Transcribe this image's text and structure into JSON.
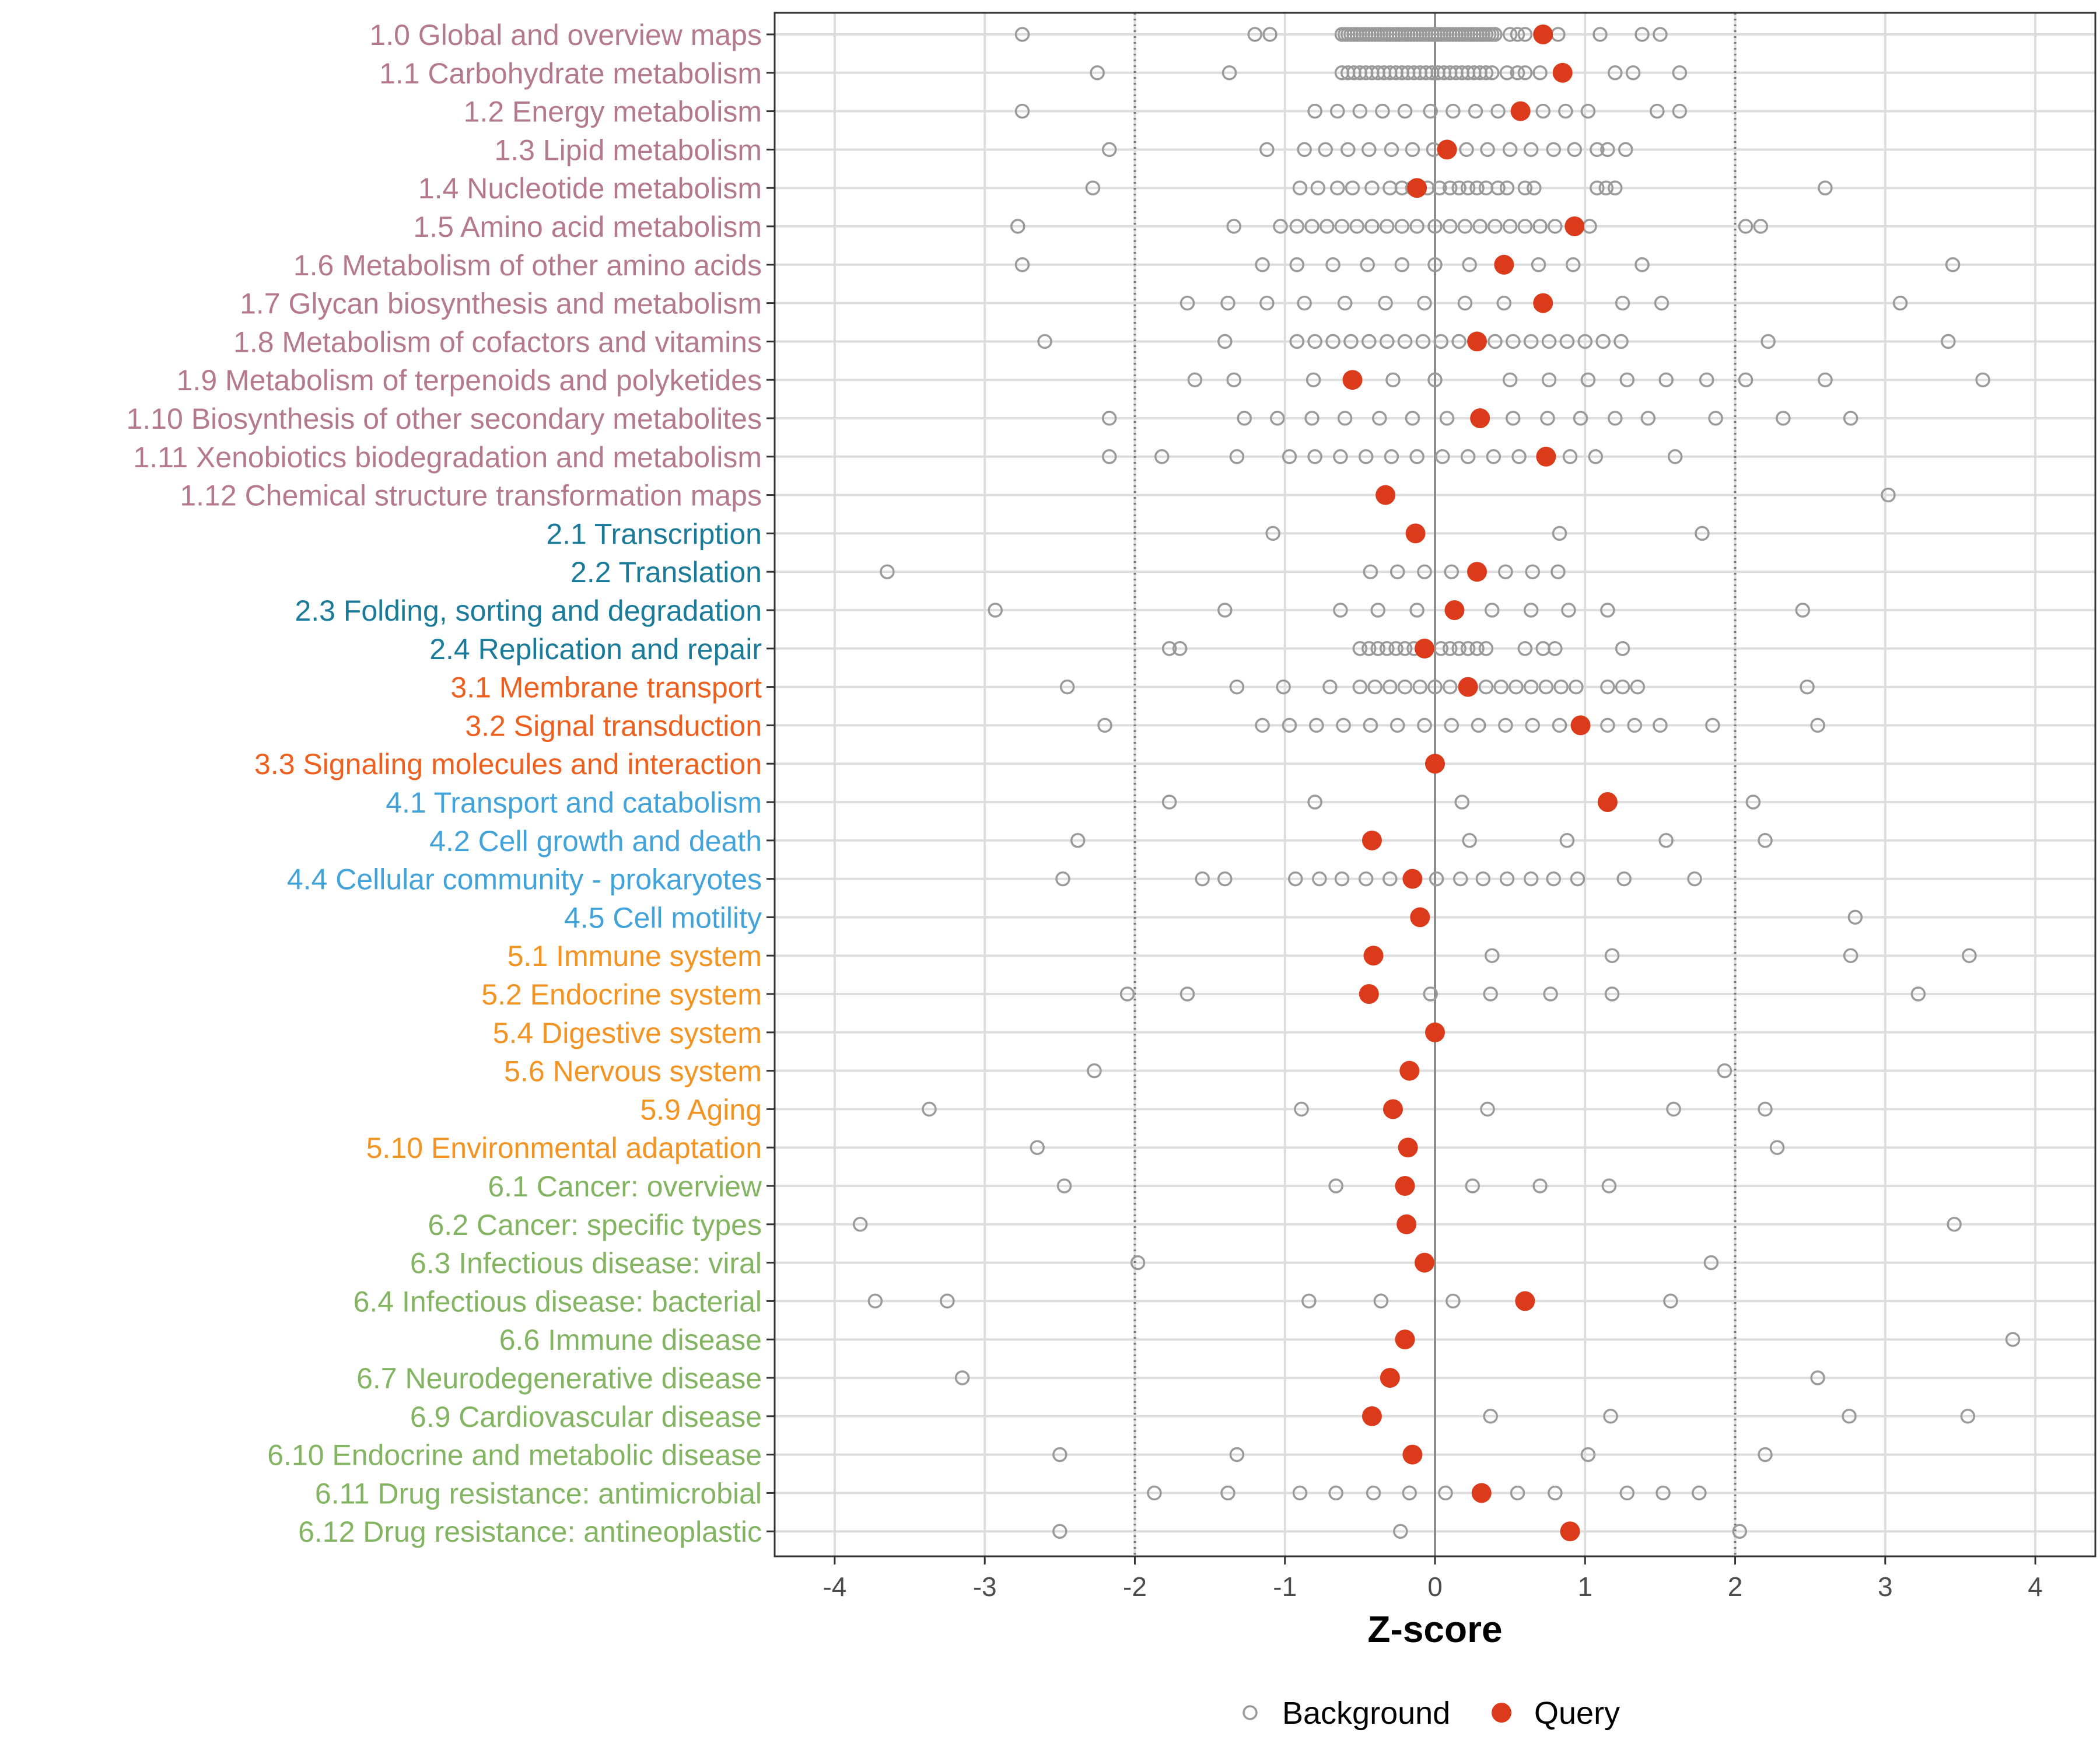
{
  "chart_data": {
    "type": "scatter",
    "title": "",
    "xlabel": "Z-score",
    "ylabel": "",
    "xlim": [
      -4.4,
      4.4
    ],
    "xticks": [
      -4,
      -3,
      -2,
      -1,
      0,
      1,
      2,
      3,
      4
    ],
    "xtick_labels": [
      "-4",
      "-3",
      "-2",
      "-1",
      "0",
      "1",
      "2",
      "3",
      "4"
    ],
    "reference_lines": [
      -2,
      2
    ],
    "zero_line": 0,
    "grid": true,
    "legend_position": "bottom",
    "legend": [
      {
        "name": "Background",
        "marker": "open-circle",
        "color": "#9a9a9a"
      },
      {
        "name": "Query",
        "marker": "filled-circle",
        "color": "#db3a1b"
      }
    ],
    "group_colors": {
      "1": "#b4798e",
      "2": "#1a7a99",
      "3": "#ee5f1e",
      "4": "#41a3da",
      "5": "#f39321",
      "6": "#82b461"
    },
    "categories": [
      {
        "label": "1.0 Global and overview maps",
        "group": "1",
        "query": 0.72,
        "background": [
          -2.75,
          -1.2,
          -1.1,
          -0.62,
          -0.6,
          -0.58,
          -0.56,
          -0.54,
          -0.52,
          -0.5,
          -0.48,
          -0.46,
          -0.44,
          -0.42,
          -0.4,
          -0.38,
          -0.36,
          -0.34,
          -0.32,
          -0.3,
          -0.28,
          -0.26,
          -0.24,
          -0.22,
          -0.2,
          -0.18,
          -0.16,
          -0.14,
          -0.12,
          -0.1,
          -0.08,
          -0.06,
          -0.04,
          -0.02,
          0.0,
          0.02,
          0.04,
          0.06,
          0.08,
          0.1,
          0.12,
          0.14,
          0.16,
          0.18,
          0.2,
          0.22,
          0.24,
          0.26,
          0.28,
          0.3,
          0.32,
          0.34,
          0.36,
          0.38,
          0.4,
          0.5,
          0.55,
          0.6,
          0.82,
          1.1,
          1.38,
          1.5
        ]
      },
      {
        "label": "1.1 Carbohydrate metabolism",
        "group": "1",
        "query": 0.85,
        "background": [
          -2.25,
          -1.37,
          -0.62,
          -0.58,
          -0.54,
          -0.5,
          -0.46,
          -0.42,
          -0.38,
          -0.34,
          -0.3,
          -0.26,
          -0.22,
          -0.18,
          -0.14,
          -0.1,
          -0.06,
          -0.02,
          0.02,
          0.06,
          0.1,
          0.14,
          0.18,
          0.22,
          0.26,
          0.3,
          0.34,
          0.38,
          0.48,
          0.55,
          0.6,
          0.7,
          1.2,
          1.32,
          1.63
        ]
      },
      {
        "label": "1.2 Energy metabolism",
        "group": "1",
        "query": 0.57,
        "background": [
          -2.75,
          -0.8,
          -0.65,
          -0.5,
          -0.35,
          -0.2,
          -0.03,
          0.12,
          0.27,
          0.42,
          0.72,
          0.87,
          1.02,
          1.48,
          1.63
        ]
      },
      {
        "label": "1.3 Lipid metabolism",
        "group": "1",
        "query": 0.08,
        "background": [
          -2.17,
          -1.12,
          -0.87,
          -0.73,
          -0.58,
          -0.44,
          -0.29,
          -0.15,
          -0.01,
          0.21,
          0.35,
          0.5,
          0.64,
          0.79,
          0.93,
          1.08,
          1.15,
          1.27
        ]
      },
      {
        "label": "1.4 Nucleotide metabolism",
        "group": "1",
        "query": -0.12,
        "background": [
          -2.28,
          -0.9,
          -0.78,
          -0.65,
          -0.55,
          -0.42,
          -0.3,
          -0.22,
          -0.15,
          -0.05,
          0.03,
          0.1,
          0.16,
          0.22,
          0.28,
          0.34,
          0.42,
          0.48,
          0.6,
          0.66,
          1.08,
          1.14,
          1.2,
          2.6
        ]
      },
      {
        "label": "1.5 Amino acid metabolism",
        "group": "1",
        "query": 0.93,
        "background": [
          -2.78,
          -1.34,
          -1.03,
          -0.92,
          -0.82,
          -0.72,
          -0.62,
          -0.52,
          -0.42,
          -0.32,
          -0.22,
          -0.12,
          0.0,
          0.1,
          0.2,
          0.3,
          0.4,
          0.5,
          0.6,
          0.7,
          0.8,
          1.03,
          2.07,
          2.17
        ]
      },
      {
        "label": "1.6 Metabolism of other amino acids",
        "group": "1",
        "query": 0.46,
        "background": [
          -2.75,
          -1.15,
          -0.92,
          -0.68,
          -0.45,
          -0.22,
          0.0,
          0.23,
          0.69,
          0.92,
          1.38,
          3.45
        ]
      },
      {
        "label": "1.7 Glycan biosynthesis and metabolism",
        "group": "1",
        "query": 0.72,
        "background": [
          -1.65,
          -1.38,
          -1.12,
          -0.87,
          -0.6,
          -0.33,
          -0.07,
          0.2,
          0.46,
          1.25,
          1.51,
          3.1
        ]
      },
      {
        "label": "1.8 Metabolism of cofactors and vitamins",
        "group": "1",
        "query": 0.28,
        "background": [
          -2.6,
          -1.4,
          -0.92,
          -0.8,
          -0.68,
          -0.56,
          -0.44,
          -0.32,
          -0.2,
          -0.08,
          0.04,
          0.16,
          0.4,
          0.52,
          0.64,
          0.76,
          0.88,
          1.0,
          1.12,
          1.24,
          2.22,
          3.42
        ]
      },
      {
        "label": "1.9 Metabolism of terpenoids and polyketides",
        "group": "1",
        "query": -0.55,
        "background": [
          -1.6,
          -1.34,
          -0.81,
          -0.28,
          0.0,
          0.5,
          0.76,
          1.02,
          1.28,
          1.54,
          1.81,
          2.07,
          2.6,
          3.65
        ]
      },
      {
        "label": "1.10 Biosynthesis of other secondary metabolites",
        "group": "1",
        "query": 0.3,
        "background": [
          -2.17,
          -1.27,
          -1.05,
          -0.82,
          -0.6,
          -0.37,
          -0.15,
          0.08,
          0.52,
          0.75,
          0.97,
          1.2,
          1.42,
          1.87,
          2.32,
          2.77
        ]
      },
      {
        "label": "1.11 Xenobiotics biodegradation and metabolism",
        "group": "1",
        "query": 0.74,
        "background": [
          -2.17,
          -1.82,
          -1.32,
          -0.97,
          -0.8,
          -0.63,
          -0.46,
          -0.29,
          -0.12,
          0.05,
          0.22,
          0.39,
          0.56,
          0.9,
          1.07,
          1.6
        ]
      },
      {
        "label": "1.12 Chemical structure transformation maps",
        "group": "1",
        "query": -0.33,
        "background": [
          3.02
        ]
      },
      {
        "label": "2.1 Transcription",
        "group": "2",
        "query": -0.13,
        "background": [
          -1.08,
          0.83,
          1.78
        ]
      },
      {
        "label": "2.2 Translation",
        "group": "2",
        "query": 0.28,
        "background": [
          -3.65,
          -0.43,
          -0.25,
          -0.07,
          0.11,
          0.47,
          0.65,
          0.82
        ]
      },
      {
        "label": "2.3 Folding, sorting and degradation",
        "group": "2",
        "query": 0.13,
        "background": [
          -2.93,
          -1.4,
          -0.63,
          -0.38,
          -0.12,
          0.38,
          0.64,
          0.89,
          1.15,
          2.45
        ]
      },
      {
        "label": "2.4 Replication and repair",
        "group": "2",
        "query": -0.07,
        "background": [
          -1.77,
          -1.7,
          -0.5,
          -0.44,
          -0.38,
          -0.32,
          -0.26,
          -0.2,
          -0.14,
          -0.08,
          0.04,
          0.1,
          0.16,
          0.22,
          0.28,
          0.34,
          0.6,
          0.72,
          0.8,
          1.25
        ]
      },
      {
        "label": "3.1 Membrane transport",
        "group": "3",
        "query": 0.22,
        "background": [
          -2.45,
          -1.32,
          -1.01,
          -0.7,
          -0.5,
          -0.4,
          -0.3,
          -0.2,
          -0.1,
          0.0,
          0.1,
          0.34,
          0.44,
          0.54,
          0.64,
          0.74,
          0.84,
          0.94,
          1.15,
          1.25,
          1.35,
          2.48
        ]
      },
      {
        "label": "3.2 Signal transduction",
        "group": "3",
        "query": 0.97,
        "background": [
          -2.2,
          -1.15,
          -0.97,
          -0.79,
          -0.61,
          -0.43,
          -0.25,
          -0.07,
          0.11,
          0.29,
          0.47,
          0.65,
          0.83,
          1.15,
          1.33,
          1.5,
          1.85,
          2.55
        ]
      },
      {
        "label": "3.3 Signaling molecules and interaction",
        "group": "3",
        "query": 0.0,
        "background": []
      },
      {
        "label": "4.1 Transport and catabolism",
        "group": "4",
        "query": 1.15,
        "background": [
          -1.77,
          -0.8,
          0.18,
          2.12
        ]
      },
      {
        "label": "4.2 Cell growth and death",
        "group": "4",
        "query": -0.42,
        "background": [
          -2.38,
          0.23,
          0.88,
          1.54,
          2.2
        ]
      },
      {
        "label": "4.4 Cellular community - prokaryotes",
        "group": "4",
        "query": -0.15,
        "background": [
          -2.48,
          -1.55,
          -1.4,
          -0.93,
          -0.77,
          -0.62,
          -0.46,
          -0.3,
          0.01,
          0.17,
          0.32,
          0.48,
          0.64,
          0.79,
          0.95,
          1.26,
          1.73
        ]
      },
      {
        "label": "4.5 Cell motility",
        "group": "4",
        "query": -0.1,
        "background": [
          2.8
        ]
      },
      {
        "label": "5.1 Immune system",
        "group": "5",
        "query": -0.41,
        "background": [
          0.38,
          1.18,
          2.77,
          3.56
        ]
      },
      {
        "label": "5.2 Endocrine system",
        "group": "5",
        "query": -0.44,
        "background": [
          -2.05,
          -1.65,
          -0.03,
          0.37,
          0.77,
          1.18,
          3.22
        ]
      },
      {
        "label": "5.4 Digestive system",
        "group": "5",
        "query": 0.0,
        "background": []
      },
      {
        "label": "5.6 Nervous system",
        "group": "5",
        "query": -0.17,
        "background": [
          -2.27,
          1.93
        ]
      },
      {
        "label": "5.9 Aging",
        "group": "5",
        "query": -0.28,
        "background": [
          -3.37,
          -0.89,
          0.35,
          1.59,
          2.2
        ]
      },
      {
        "label": "5.10 Environmental adaptation",
        "group": "5",
        "query": -0.18,
        "background": [
          -2.65,
          2.28
        ]
      },
      {
        "label": "6.1 Cancer: overview",
        "group": "6",
        "query": -0.2,
        "background": [
          -2.47,
          -0.66,
          0.25,
          0.7,
          1.16
        ]
      },
      {
        "label": "6.2 Cancer: specific types",
        "group": "6",
        "query": -0.19,
        "background": [
          -3.83,
          3.46
        ]
      },
      {
        "label": "6.3 Infectious disease: viral",
        "group": "6",
        "query": -0.07,
        "background": [
          -1.98,
          1.84
        ]
      },
      {
        "label": "6.4 Infectious disease: bacterial",
        "group": "6",
        "query": 0.6,
        "background": [
          -3.73,
          -3.25,
          -0.84,
          -0.36,
          0.12,
          1.57
        ]
      },
      {
        "label": "6.6 Immune disease",
        "group": "6",
        "query": -0.2,
        "background": [
          3.85
        ]
      },
      {
        "label": "6.7 Neurodegenerative disease",
        "group": "6",
        "query": -0.3,
        "background": [
          -3.15,
          2.55
        ]
      },
      {
        "label": "6.9 Cardiovascular disease",
        "group": "6",
        "query": -0.42,
        "background": [
          0.37,
          1.17,
          2.76,
          3.55
        ]
      },
      {
        "label": "6.10 Endocrine and metabolic disease",
        "group": "6",
        "query": -0.15,
        "background": [
          -2.5,
          -1.32,
          1.02,
          2.2
        ]
      },
      {
        "label": "6.11 Drug resistance: antimicrobial",
        "group": "6",
        "query": 0.31,
        "background": [
          -1.87,
          -1.38,
          -0.9,
          -0.66,
          -0.41,
          -0.17,
          0.07,
          0.55,
          0.8,
          1.28,
          1.52,
          1.76
        ]
      },
      {
        "label": "6.12 Drug resistance: antineoplastic",
        "group": "6",
        "query": 0.9,
        "background": [
          -2.5,
          -0.23,
          2.03
        ]
      }
    ]
  }
}
